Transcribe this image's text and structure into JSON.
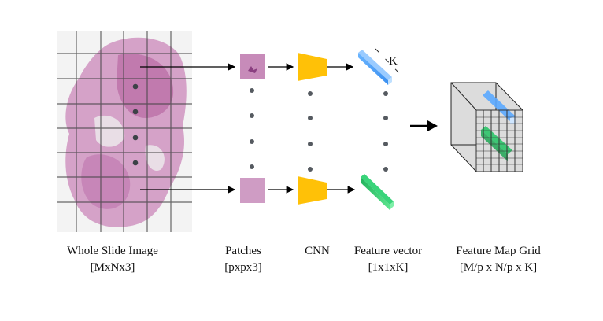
{
  "labels": {
    "wsi": {
      "title": "Whole Slide Image",
      "dims": "[MxNx3]"
    },
    "patches": {
      "title": "Patches",
      "dims": "[pxpx3]"
    },
    "cnn": {
      "title": "CNN"
    },
    "feature_vector": {
      "title": "Feature vector",
      "dims": "[1x1xK]"
    },
    "feature_map": {
      "title": "Feature Map Grid",
      "dims": "[M/p x N/p x K]"
    }
  },
  "k_label": "K",
  "colors": {
    "tissue": "#c98ab8",
    "cnn": "#ffc107",
    "feature_blue": "#4da3ff",
    "feature_green": "#2ecc71",
    "grid": "#333333",
    "dots": "#555a60"
  }
}
